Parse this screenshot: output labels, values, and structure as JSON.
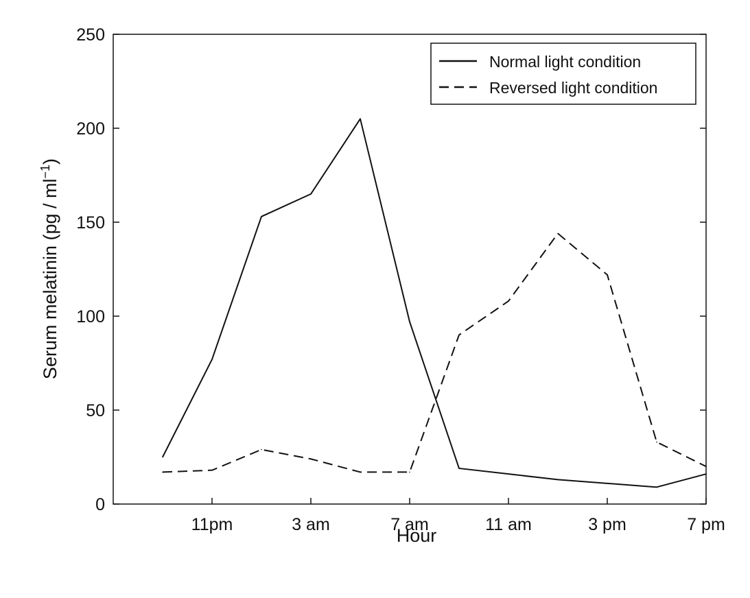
{
  "chart_data": {
    "type": "line",
    "title": "",
    "xlabel": "Hour",
    "ylabel": "Serum melatinin (pg / ml",
    "ylabel_superscript": "−1",
    "ylabel_close": ")",
    "x_hours": [
      2,
      4,
      6,
      8,
      10,
      12,
      14,
      16,
      18,
      20,
      22,
      24
    ],
    "xlim": [
      0,
      24
    ],
    "ylim": [
      0,
      250
    ],
    "x_ticks": [
      {
        "value": 4,
        "label": "11pm"
      },
      {
        "value": 8,
        "label": "3 am"
      },
      {
        "value": 12,
        "label": "7 am"
      },
      {
        "value": 16,
        "label": "11 am"
      },
      {
        "value": 20,
        "label": "3 pm"
      },
      {
        "value": 24,
        "label": "7 pm"
      }
    ],
    "y_ticks": [
      0,
      50,
      100,
      150,
      200,
      250
    ],
    "grid": false,
    "legend_position": "top-right",
    "series": [
      {
        "name": "Normal light condition",
        "style": "solid",
        "values": [
          25,
          77,
          153,
          165,
          205,
          97,
          19,
          16,
          13,
          11,
          9,
          16
        ]
      },
      {
        "name": "Reversed light condition",
        "style": "dashed",
        "values": [
          17,
          18,
          29,
          24,
          17,
          17,
          90,
          108,
          144,
          122,
          33,
          20
        ]
      }
    ]
  }
}
